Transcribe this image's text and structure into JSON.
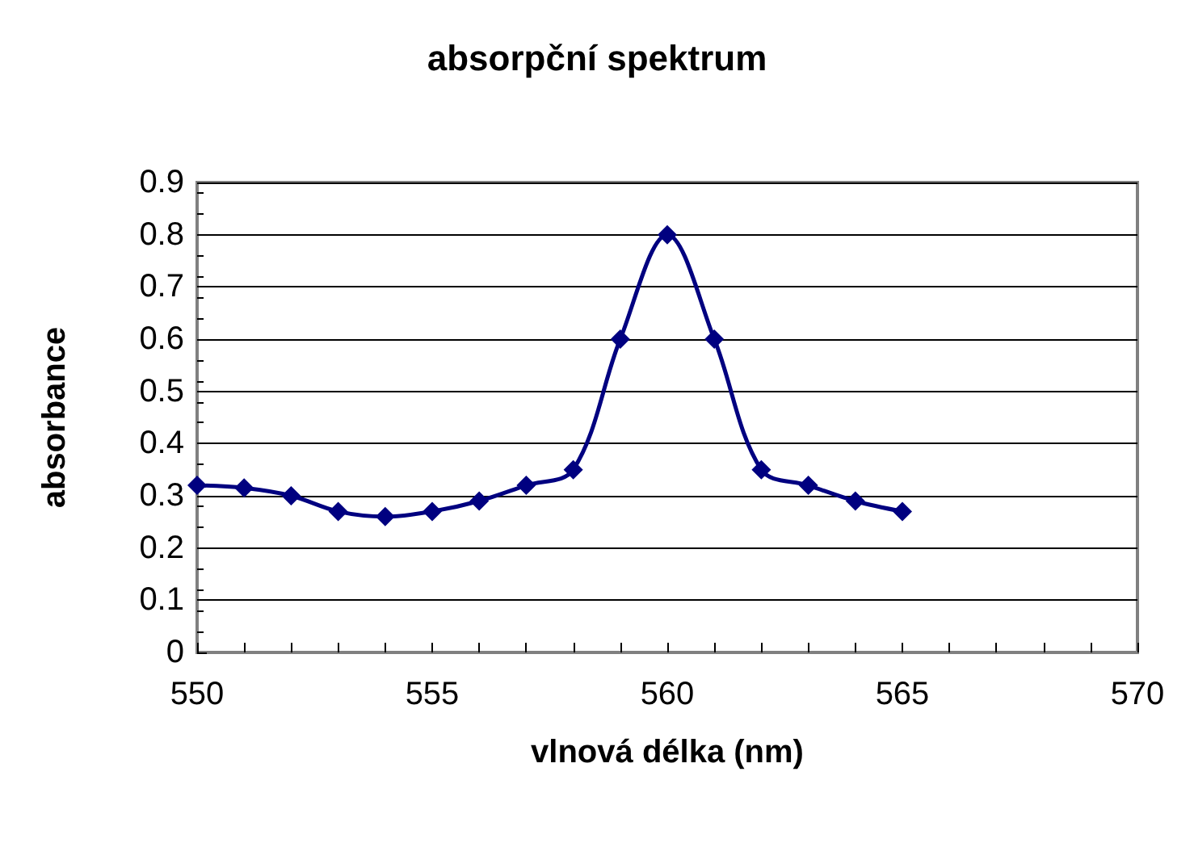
{
  "chart_data": {
    "type": "line",
    "title": "absorpční spektrum",
    "xlabel": "vlnová délka (nm)",
    "ylabel": "absorbance",
    "x": [
      550,
      551,
      552,
      553,
      554,
      555,
      556,
      557,
      558,
      559,
      560,
      561,
      562,
      563,
      564,
      565
    ],
    "series": [
      {
        "color": "#000080",
        "values": [
          0.32,
          0.315,
          0.3,
          0.27,
          0.26,
          0.27,
          0.29,
          0.32,
          0.35,
          0.6,
          0.8,
          0.6,
          0.35,
          0.32,
          0.29,
          0.27
        ]
      }
    ],
    "xlim": [
      550,
      570
    ],
    "xticks": [
      550,
      {
        "value": 551,
        "label": null
      },
      {
        "value": 552,
        "label": null
      },
      {
        "value": 553,
        "label": null
      },
      {
        "value": 554,
        "label": null
      },
      555,
      {
        "value": 556,
        "label": null
      },
      {
        "value": 557,
        "label": null
      },
      {
        "value": 558,
        "label": null
      },
      {
        "value": 559,
        "label": null
      },
      560,
      {
        "value": 561,
        "label": null
      },
      {
        "value": 562,
        "label": null
      },
      {
        "value": 563,
        "label": null
      },
      {
        "value": 564,
        "label": null
      },
      565,
      {
        "value": 566,
        "label": null
      },
      {
        "value": 567,
        "label": null
      },
      {
        "value": 568,
        "label": null
      },
      {
        "value": 569,
        "label": null
      },
      570
    ],
    "ylim": [
      0,
      0.9
    ],
    "yticks": [
      0,
      0.1,
      0.2,
      0.3,
      0.4,
      0.5,
      0.6,
      0.7,
      0.8,
      0.9
    ],
    "grid": "y",
    "marker": "diamond",
    "line_style": "solid"
  }
}
